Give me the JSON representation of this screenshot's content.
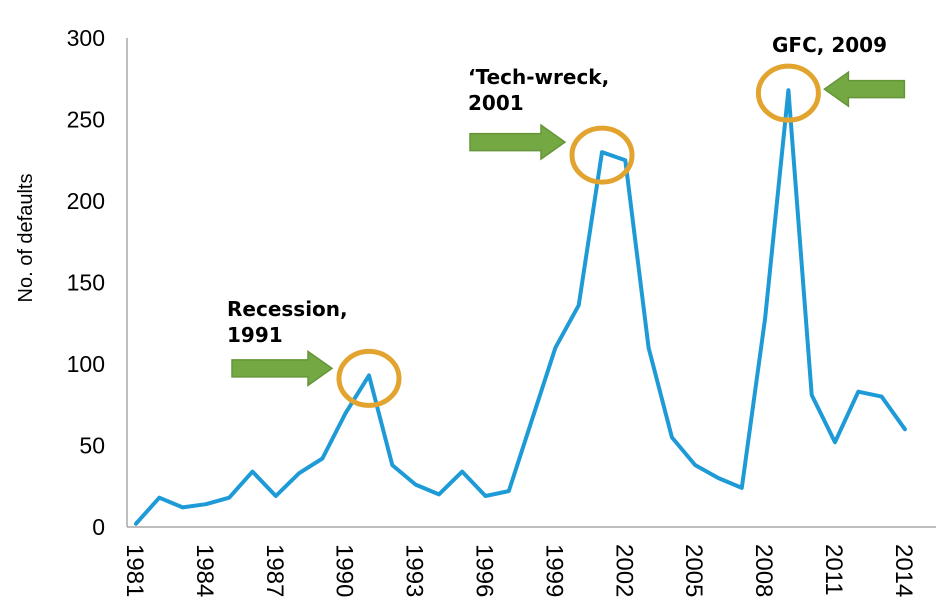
{
  "chart_data": {
    "type": "line",
    "title": "",
    "xlabel": "",
    "ylabel": "No. of defaults",
    "ylim": [
      0,
      300
    ],
    "grid": false,
    "legend": false,
    "x": [
      1981,
      1982,
      1983,
      1984,
      1985,
      1986,
      1987,
      1988,
      1989,
      1990,
      1991,
      1992,
      1993,
      1994,
      1995,
      1996,
      1997,
      1998,
      1999,
      2000,
      2001,
      2002,
      2003,
      2004,
      2005,
      2006,
      2007,
      2008,
      2009,
      2010,
      2011,
      2012,
      2013,
      2014
    ],
    "series": [
      {
        "name": "No. of defaults",
        "values": [
          2,
          18,
          12,
          14,
          18,
          34,
          19,
          33,
          42,
          70,
          93,
          38,
          26,
          20,
          34,
          19,
          22,
          66,
          110,
          136,
          230,
          225,
          110,
          55,
          38,
          30,
          24,
          128,
          268,
          81,
          52,
          83,
          80,
          60
        ]
      }
    ],
    "y_ticks": [
      0,
      50,
      100,
      150,
      200,
      250,
      300
    ],
    "x_ticks": [
      1981,
      1984,
      1987,
      1990,
      1993,
      1996,
      1999,
      2002,
      2005,
      2008,
      2011,
      2014
    ],
    "annotations": [
      {
        "line1": "Recession,",
        "line2": "1991",
        "year": 1991,
        "value": 93,
        "arrow_dir": "right"
      },
      {
        "line1": "‘Tech-wreck,",
        "line2": "2001",
        "year": 2001,
        "value": 230,
        "arrow_dir": "right"
      },
      {
        "line1": "GFC, 2009",
        "line2": "",
        "year": 2009,
        "value": 268,
        "arrow_dir": "left"
      }
    ],
    "colors": {
      "line": "#1E9BD7",
      "circle": "#E2A42E",
      "arrow_fill": "#74A843",
      "arrow_edge": "#669539",
      "axis": "#A8A8A8",
      "text": "#000000"
    }
  }
}
